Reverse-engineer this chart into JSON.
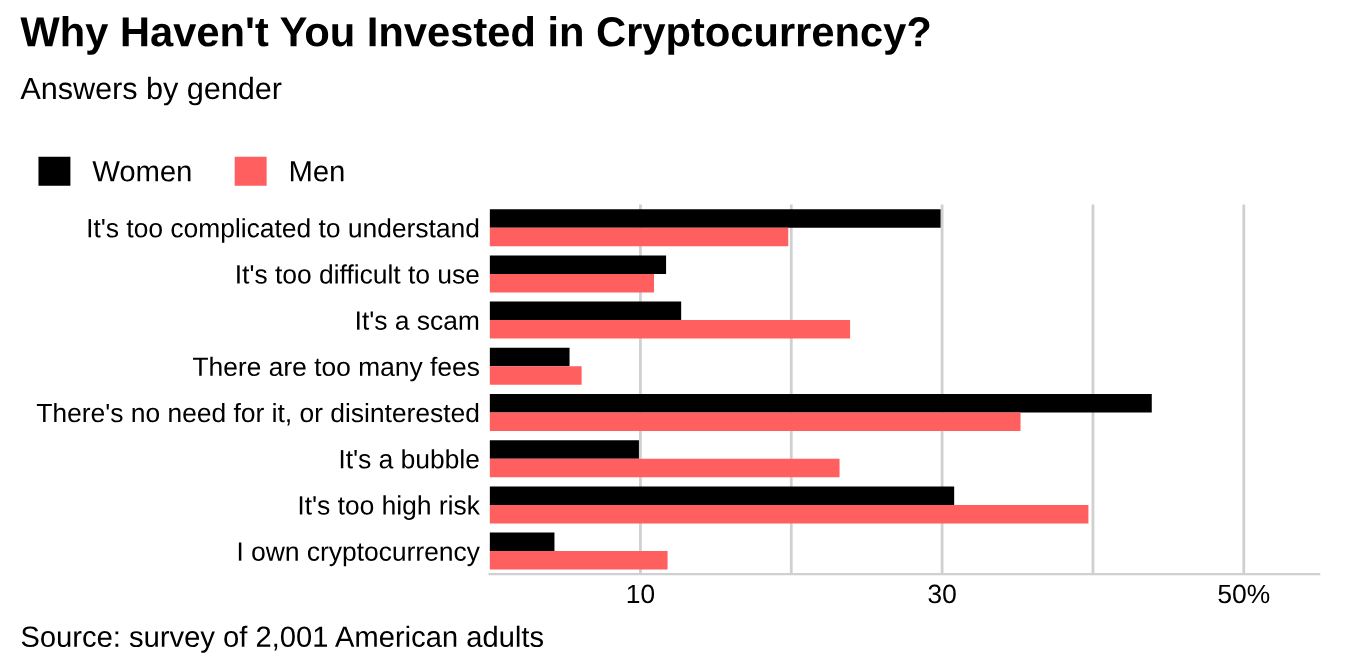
{
  "chart_data": {
    "type": "bar",
    "orientation": "horizontal",
    "title": "Why Haven't You Invested in Cryptocurrency?",
    "subtitle": "Answers by gender",
    "categories": [
      "It's too complicated to understand",
      "It's too difficult to use",
      "It's a scam",
      "There are too many fees",
      "There's no need for it, or disinterested",
      "It's a bubble",
      "It's too high risk",
      "I own cryptocurrency"
    ],
    "series": [
      {
        "name": "Women",
        "color": "#000000",
        "values": [
          29.9,
          11.7,
          12.7,
          5.3,
          43.9,
          9.9,
          30.8,
          4.3
        ]
      },
      {
        "name": "Men",
        "color": "#ff5f5f",
        "values": [
          19.8,
          10.9,
          23.9,
          6.1,
          35.2,
          23.2,
          39.7,
          11.8
        ]
      }
    ],
    "xlim": [
      0,
      55
    ],
    "xticks": [
      10,
      {
        "value": 20,
        "label": null
      },
      30,
      {
        "value": 40,
        "label": null
      },
      {
        "value": 50,
        "label": "50%"
      }
    ],
    "grid": "x",
    "legend": "top left",
    "annotations": [
      "Source: survey of 2,001 American adults"
    ]
  }
}
